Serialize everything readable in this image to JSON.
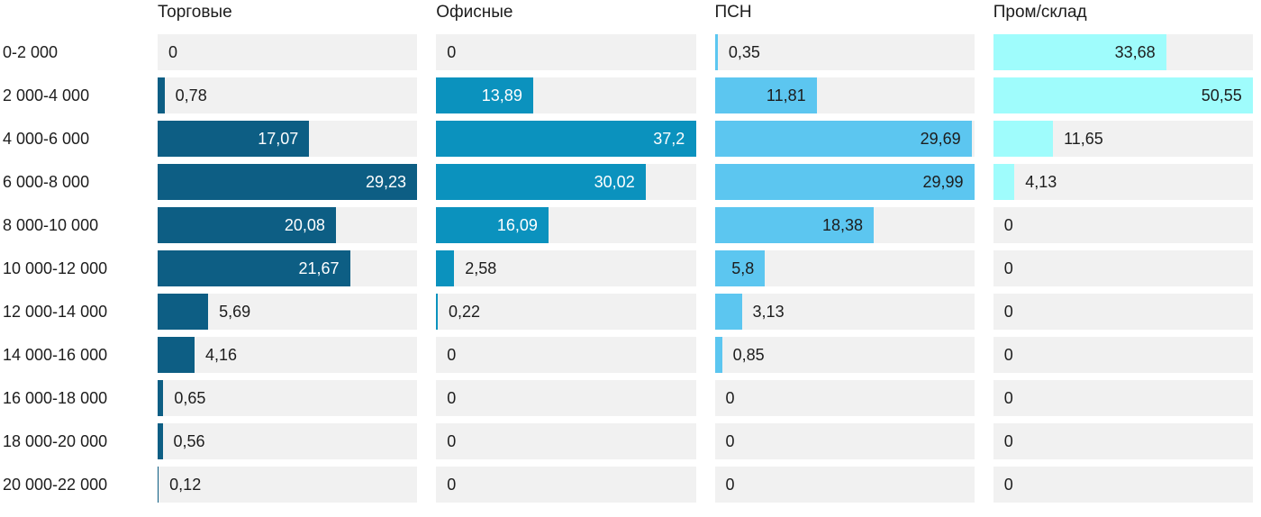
{
  "chart_data": {
    "type": "bar",
    "orientation": "horizontal",
    "title": "",
    "xlabel": "",
    "ylabel": "",
    "grid": false,
    "legend_position": "column-headers",
    "scaling": "each column scaled so its max value fills the track width",
    "track_color": "#f1f1f1",
    "text_color": "#1d1d1d",
    "categories": [
      "0-2 000",
      "2 000-4 000",
      "4 000-6 000",
      "6 000-8 000",
      "8 000-10 000",
      "10 000-12 000",
      "12 000-14 000",
      "14 000-16 000",
      "16 000-18 000",
      "18 000-20 000",
      "20 000-22 000"
    ],
    "series": [
      {
        "name": "Торговые",
        "color": "#0d5e84",
        "inside_label_color": "#ffffff",
        "values": [
          0,
          0.78,
          17.07,
          29.23,
          20.08,
          21.67,
          5.69,
          4.16,
          0.65,
          0.56,
          0.12
        ],
        "labels": [
          "0",
          "0,78",
          "17,07",
          "29,23",
          "20,08",
          "21,67",
          "5,69",
          "4,16",
          "0,65",
          "0,56",
          "0,12"
        ]
      },
      {
        "name": "Офисные",
        "color": "#0b92be",
        "inside_label_color": "#ffffff",
        "values": [
          0,
          13.89,
          37.2,
          30.02,
          16.09,
          2.58,
          0.22,
          0,
          0,
          0,
          0
        ],
        "labels": [
          "0",
          "13,89",
          "37,2",
          "30,02",
          "16,09",
          "2,58",
          "0,22",
          "0",
          "0",
          "0",
          "0"
        ]
      },
      {
        "name": "ПСН",
        "color": "#5cc6f0",
        "inside_label_color": "#1d1d1d",
        "values": [
          0.35,
          11.81,
          29.69,
          29.99,
          18.38,
          5.8,
          3.13,
          0.85,
          0,
          0,
          0
        ],
        "labels": [
          "0,35",
          "11,81",
          "29,69",
          "29,99",
          "18,38",
          "5,8",
          "3,13",
          "0,85",
          "0",
          "0",
          "0"
        ]
      },
      {
        "name": "Пром/склад",
        "color": "#9ffcfc",
        "inside_label_color": "#1d1d1d",
        "values": [
          33.68,
          50.55,
          11.65,
          4.13,
          0,
          0,
          0,
          0,
          0,
          0,
          0
        ],
        "labels": [
          "33,68",
          "50,55",
          "11,65",
          "4,13",
          "0",
          "0",
          "0",
          "0",
          "0",
          "0",
          "0"
        ]
      }
    ]
  }
}
